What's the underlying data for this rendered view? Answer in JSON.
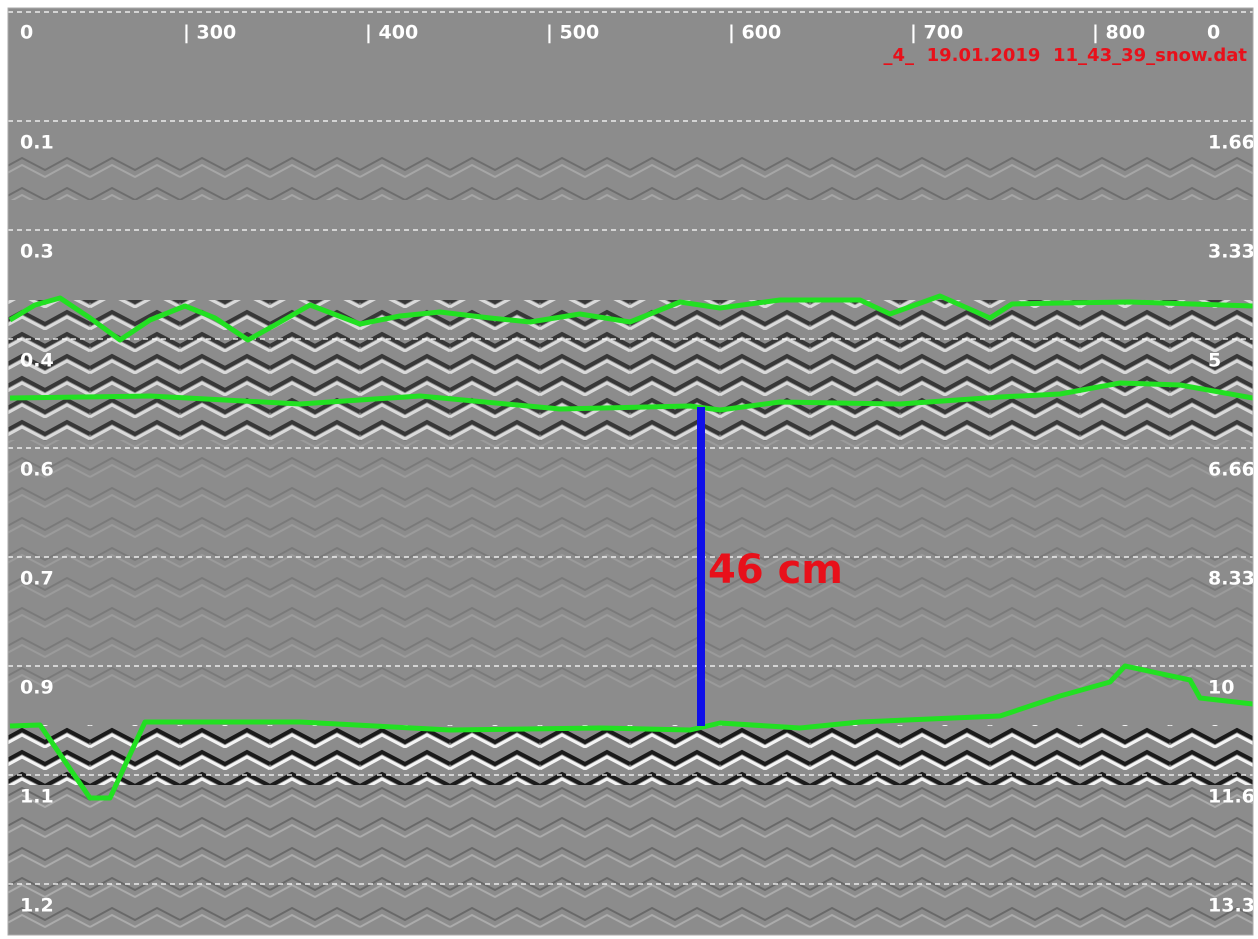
{
  "header": {
    "distance_labels": [
      "0",
      "| 300",
      "| 400",
      "| 500",
      "| 600",
      "| 700",
      "| 800",
      "0"
    ],
    "file_name": "_4_  19.01.2019  11_43_39_snow.dat"
  },
  "depth_labels_left": [
    "0.1",
    "0.3",
    "0.4",
    "0.6",
    "0.7",
    "0.9",
    "1.1",
    "1.2"
  ],
  "depth_labels_right": [
    "1.66",
    "3.33",
    "5",
    "6.66",
    "8.33",
    "10",
    "11.6",
    "13.3"
  ],
  "annotation": "46 cm"
}
